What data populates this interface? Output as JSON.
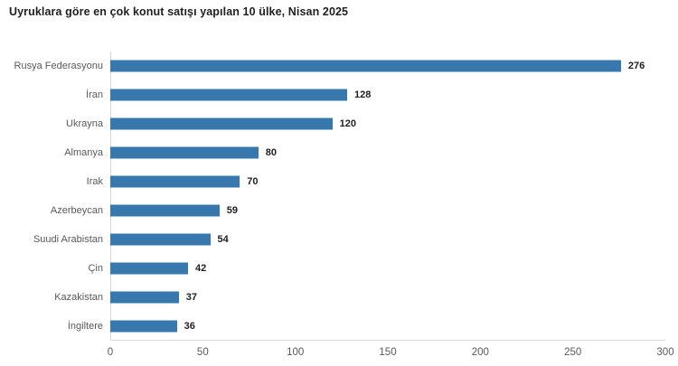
{
  "chart_data": {
    "type": "bar",
    "orientation": "horizontal",
    "title": "Uyruklara göre en çok konut satışı yapılan 10 ülke, Nisan 2025",
    "categories": [
      "Rusya Federasyonu",
      "İran",
      "Ukrayna",
      "Almanya",
      "Irak",
      "Azerbeycan",
      "Suudi Arabistan",
      "Çin",
      "Kazakistan",
      "İngiltere"
    ],
    "values": [
      276,
      128,
      120,
      80,
      70,
      59,
      54,
      42,
      37,
      36
    ],
    "xlabel": "",
    "ylabel": "",
    "xlim": [
      0,
      300
    ],
    "x_ticks": [
      0,
      50,
      100,
      150,
      200,
      250,
      300
    ],
    "grid": false,
    "legend": null,
    "value_labels_shown": true
  },
  "colors": {
    "bar": "#3779af",
    "title_text": "#1f1f1f",
    "category_text": "#595959",
    "value_text": "#1f1f1f",
    "tick_text": "#595959",
    "axis_line": "#d9d9d9",
    "background": "#ffffff"
  }
}
